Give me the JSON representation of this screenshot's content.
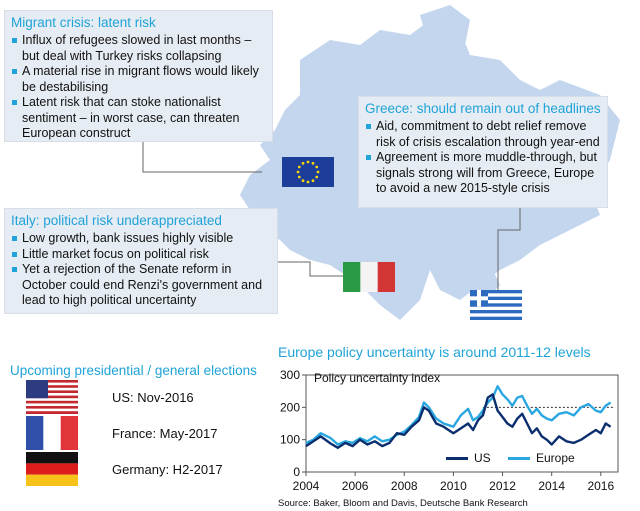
{
  "migrant": {
    "title": "Migrant crisis: latent risk",
    "bullets": [
      "Influx of refugees slowed in last months – but deal with Turkey risks collapsing",
      "A material rise in migrant flows would likely be destabilising",
      "Latent risk that can stoke nationalist sentiment – in worst case, can threaten European construct"
    ]
  },
  "greece": {
    "title": "Greece: should remain out of headlines",
    "bullets": [
      "Aid, commitment to debt relief remove risk of crisis escalation through year-end",
      "Agreement is more muddle-through, but signals strong will from Greece, Europe to avoid a new 2015-style crisis"
    ]
  },
  "italy": {
    "title": "Italy: political risk underappreciated",
    "bullets": [
      "Low growth, bank issues highly visible",
      "Little market focus on political risk",
      "Yet a rejection of the Senate reform in October could end Renzi's government and lead to high political uncertainty"
    ]
  },
  "elections": {
    "title": "Upcoming presidential / general elections",
    "items": [
      {
        "label": "US: Nov-2016",
        "flag": "us-flag"
      },
      {
        "label": "France: May-2017",
        "flag": "france-flag"
      },
      {
        "label": "Germany: H2-2017",
        "flag": "germany-flag"
      }
    ]
  },
  "colors": {
    "accent": "#1fa3d8",
    "us_series": "#0b2f6e",
    "europe_series": "#2aa7e0",
    "box_bg": "#e6ecf3",
    "map_fill": "#c3d6ee"
  },
  "chart_data": {
    "type": "line",
    "title": "Europe policy uncertainty is around 2011-12 levels",
    "subtitle": "Policy uncertainty index",
    "source": "Source: Baker, Bloom and Davis, Deutsche Bank Research",
    "xlim": [
      2004,
      2016.7
    ],
    "ylim": [
      0,
      300
    ],
    "xticks": [
      2004,
      2006,
      2008,
      2010,
      2012,
      2014,
      2016
    ],
    "yticks": [
      0,
      100,
      200,
      300
    ],
    "reference_line": {
      "value": 200,
      "x_from": 2011.2,
      "x_to": 2016.5,
      "style": "dotted"
    },
    "series": [
      {
        "name": "US",
        "x": [
          2004.0,
          2004.3,
          2004.6,
          2005.0,
          2005.3,
          2005.6,
          2005.9,
          2006.2,
          2006.5,
          2006.8,
          2007.1,
          2007.4,
          2007.7,
          2008.0,
          2008.3,
          2008.6,
          2008.8,
          2009.0,
          2009.3,
          2009.6,
          2010.0,
          2010.3,
          2010.6,
          2010.8,
          2011.0,
          2011.2,
          2011.4,
          2011.6,
          2011.8,
          2012.0,
          2012.2,
          2012.4,
          2012.6,
          2012.8,
          2013.0,
          2013.2,
          2013.4,
          2013.6,
          2013.8,
          2014.0,
          2014.3,
          2014.6,
          2014.9,
          2015.2,
          2015.5,
          2015.8,
          2016.0,
          2016.2,
          2016.4
        ],
        "values": [
          80,
          95,
          110,
          88,
          75,
          90,
          80,
          100,
          85,
          95,
          80,
          90,
          120,
          115,
          140,
          160,
          200,
          190,
          150,
          140,
          120,
          135,
          150,
          130,
          160,
          175,
          230,
          240,
          190,
          170,
          150,
          140,
          165,
          180,
          150,
          120,
          135,
          110,
          100,
          85,
          110,
          95,
          90,
          100,
          115,
          130,
          120,
          150,
          140
        ]
      },
      {
        "name": "Europe",
        "x": [
          2004.0,
          2004.3,
          2004.6,
          2005.0,
          2005.3,
          2005.6,
          2005.9,
          2006.2,
          2006.5,
          2006.8,
          2007.1,
          2007.4,
          2007.7,
          2008.0,
          2008.3,
          2008.6,
          2008.8,
          2009.0,
          2009.3,
          2009.6,
          2010.0,
          2010.3,
          2010.6,
          2010.8,
          2011.0,
          2011.2,
          2011.4,
          2011.6,
          2011.8,
          2012.0,
          2012.2,
          2012.4,
          2012.6,
          2012.8,
          2013.0,
          2013.2,
          2013.4,
          2013.6,
          2013.8,
          2014.0,
          2014.3,
          2014.6,
          2014.9,
          2015.2,
          2015.5,
          2015.8,
          2016.0,
          2016.2,
          2016.4
        ],
        "values": [
          90,
          100,
          120,
          105,
          85,
          95,
          90,
          105,
          95,
          110,
          95,
          100,
          115,
          125,
          145,
          170,
          215,
          200,
          165,
          150,
          140,
          175,
          195,
          160,
          170,
          190,
          215,
          230,
          265,
          240,
          225,
          205,
          230,
          235,
          205,
          180,
          195,
          175,
          165,
          160,
          180,
          185,
          175,
          200,
          210,
          190,
          185,
          205,
          215
        ]
      }
    ]
  }
}
